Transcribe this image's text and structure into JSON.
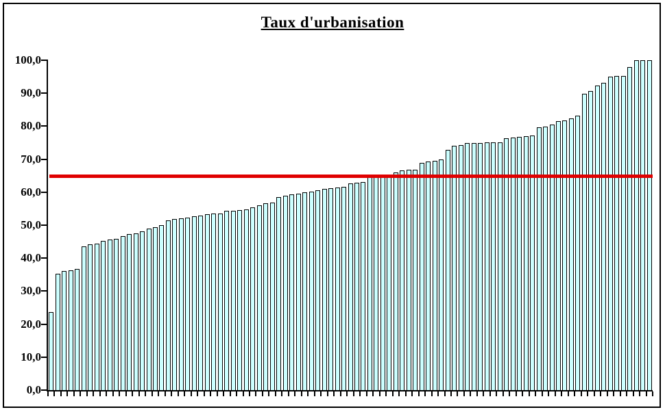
{
  "title": "Taux d'urbanisation",
  "chart_data": {
    "type": "bar",
    "title": "Taux d'urbanisation",
    "xlabel": "",
    "ylabel": "",
    "ylim": [
      0,
      100
    ],
    "ytick_step": 10,
    "ytick_labels": [
      "0,0",
      "10,0",
      "20,0",
      "30,0",
      "40,0",
      "50,0",
      "60,0",
      "70,0",
      "80,0",
      "90,0",
      "100,0"
    ],
    "x_axis_labels_visible": false,
    "grid": false,
    "legend": "none",
    "bar_fill_color": "#ccffff",
    "bar_border_color": "#000000",
    "values": [
      23.7,
      35.2,
      36.0,
      36.3,
      36.7,
      43.6,
      44.2,
      44.4,
      45.2,
      45.6,
      45.9,
      46.7,
      47.4,
      47.6,
      48.2,
      49.0,
      49.4,
      50.0,
      51.5,
      51.9,
      52.1,
      52.3,
      52.7,
      52.9,
      53.3,
      53.5,
      53.6,
      54.3,
      54.4,
      54.6,
      54.8,
      55.4,
      56.0,
      56.7,
      56.9,
      58.5,
      58.9,
      59.3,
      59.6,
      60.0,
      60.2,
      60.6,
      61.0,
      61.2,
      61.4,
      61.7,
      62.6,
      62.8,
      63.0,
      64.5,
      64.6,
      64.7,
      64.8,
      66.0,
      66.7,
      66.8,
      66.9,
      68.9,
      69.2,
      69.4,
      70.0,
      72.8,
      74.1,
      74.3,
      74.8,
      74.9,
      75.0,
      75.1,
      75.1,
      75.2,
      76.3,
      76.6,
      76.8,
      77.0,
      77.2,
      79.7,
      79.9,
      80.4,
      81.6,
      81.8,
      82.4,
      83.2,
      89.8,
      90.7,
      92.3,
      93.2,
      95.0,
      95.2,
      95.3,
      97.9,
      100.0,
      100.0,
      100.0
    ],
    "reference_line": {
      "value": 65.0,
      "color": "#e00000"
    }
  }
}
